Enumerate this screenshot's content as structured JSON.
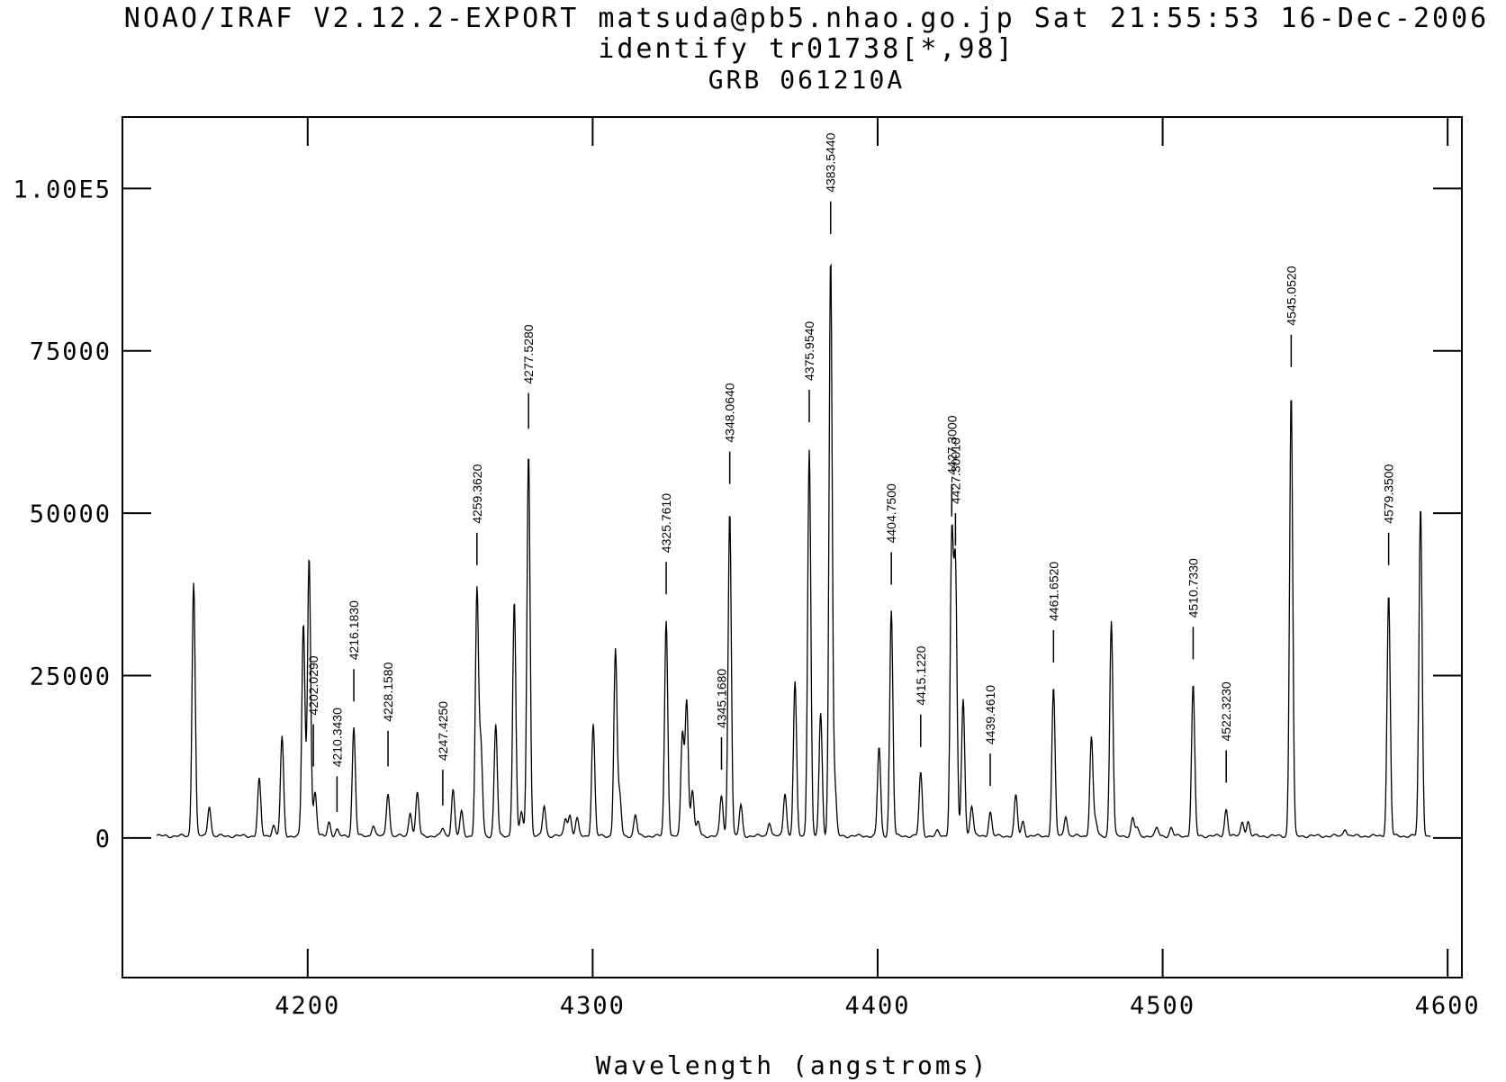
{
  "header": {
    "system_line": "NOAO/IRAF V2.12.2-EXPORT matsuda@pb5.nhao.go.jp Sat 21:55:53 16-Dec-2006",
    "command_line": "identify tr01738[*,98]",
    "object_line": "GRB 061210A"
  },
  "chart_data": {
    "type": "line",
    "title": "GRB 061210A",
    "xlabel": "Wavelength (angstroms)",
    "ylabel": "",
    "xlim": [
      4135,
      4605
    ],
    "ylim": [
      -21500,
      111000
    ],
    "grid": false,
    "x_ticks": [
      {
        "value": 4200,
        "label": "4200"
      },
      {
        "value": 4300,
        "label": "4300"
      },
      {
        "value": 4400,
        "label": "4400"
      },
      {
        "value": 4500,
        "label": "4500"
      },
      {
        "value": 4600,
        "label": "4600"
      }
    ],
    "y_ticks": [
      {
        "value": 0,
        "label": "0"
      },
      {
        "value": 25000,
        "label": "25000"
      },
      {
        "value": 50000,
        "label": "50000"
      },
      {
        "value": 75000,
        "label": "75000"
      },
      {
        "value": 100000,
        "label": "1.00E5"
      }
    ],
    "baseline": 300,
    "lines": [
      {
        "x": 4160.0,
        "y": 39500
      },
      {
        "x": 4165.5,
        "y": 5000
      },
      {
        "x": 4183.0,
        "y": 9000
      },
      {
        "x": 4188.0,
        "y": 2000
      },
      {
        "x": 4191.0,
        "y": 15500
      },
      {
        "x": 4198.5,
        "y": 33000
      },
      {
        "x": 4200.5,
        "y": 43500
      },
      {
        "x": 4202.6,
        "y": 7000
      },
      {
        "x": 4207.5,
        "y": 2500
      },
      {
        "x": 4210.3,
        "y": 1200
      },
      {
        "x": 4216.2,
        "y": 17000
      },
      {
        "x": 4223.0,
        "y": 2000
      },
      {
        "x": 4228.2,
        "y": 7000
      },
      {
        "x": 4236.0,
        "y": 4000
      },
      {
        "x": 4238.5,
        "y": 7000
      },
      {
        "x": 4247.4,
        "y": 1500
      },
      {
        "x": 4251.0,
        "y": 7500
      },
      {
        "x": 4254.0,
        "y": 4000
      },
      {
        "x": 4259.4,
        "y": 38000
      },
      {
        "x": 4260.8,
        "y": 14000
      },
      {
        "x": 4266.0,
        "y": 17500
      },
      {
        "x": 4272.5,
        "y": 36500
      },
      {
        "x": 4275.0,
        "y": 4000
      },
      {
        "x": 4277.5,
        "y": 59500
      },
      {
        "x": 4283.0,
        "y": 5000
      },
      {
        "x": 4290.5,
        "y": 3000
      },
      {
        "x": 4292.0,
        "y": 3500
      },
      {
        "x": 4294.5,
        "y": 3000
      },
      {
        "x": 4300.2,
        "y": 17500
      },
      {
        "x": 4308.0,
        "y": 29000
      },
      {
        "x": 4309.5,
        "y": 6500
      },
      {
        "x": 4315.0,
        "y": 3500
      },
      {
        "x": 4325.8,
        "y": 33500
      },
      {
        "x": 4331.5,
        "y": 16000
      },
      {
        "x": 4333.0,
        "y": 21000
      },
      {
        "x": 4335.0,
        "y": 7500
      },
      {
        "x": 4337.0,
        "y": 2500
      },
      {
        "x": 4345.2,
        "y": 6500
      },
      {
        "x": 4348.1,
        "y": 50500
      },
      {
        "x": 4352.0,
        "y": 5000
      },
      {
        "x": 4362.0,
        "y": 2500
      },
      {
        "x": 4367.5,
        "y": 7000
      },
      {
        "x": 4371.0,
        "y": 24000
      },
      {
        "x": 4376.0,
        "y": 60000
      },
      {
        "x": 4380.0,
        "y": 19000
      },
      {
        "x": 4383.5,
        "y": 89500
      },
      {
        "x": 4385.0,
        "y": 7500
      },
      {
        "x": 4400.5,
        "y": 14000
      },
      {
        "x": 4404.8,
        "y": 35000
      },
      {
        "x": 4415.1,
        "y": 10000
      },
      {
        "x": 4421.0,
        "y": 1000
      },
      {
        "x": 4426.0,
        "y": 45500
      },
      {
        "x": 4427.3,
        "y": 41000
      },
      {
        "x": 4430.0,
        "y": 21500
      },
      {
        "x": 4433.0,
        "y": 5000
      },
      {
        "x": 4439.5,
        "y": 4000
      },
      {
        "x": 4448.5,
        "y": 6500
      },
      {
        "x": 4451.0,
        "y": 2500
      },
      {
        "x": 4461.7,
        "y": 23000
      },
      {
        "x": 4466.0,
        "y": 3500
      },
      {
        "x": 4475.0,
        "y": 15500
      },
      {
        "x": 4476.5,
        "y": 2500
      },
      {
        "x": 4482.0,
        "y": 33500
      },
      {
        "x": 4489.5,
        "y": 3000
      },
      {
        "x": 4491.0,
        "y": 1500
      },
      {
        "x": 4498.0,
        "y": 1500
      },
      {
        "x": 4503.0,
        "y": 1500
      },
      {
        "x": 4510.7,
        "y": 23500
      },
      {
        "x": 4522.3,
        "y": 4500
      },
      {
        "x": 4528.0,
        "y": 2500
      },
      {
        "x": 4530.0,
        "y": 2500
      },
      {
        "x": 4545.1,
        "y": 68500
      },
      {
        "x": 4564.0,
        "y": 1500
      },
      {
        "x": 4579.3,
        "y": 37500
      },
      {
        "x": 4590.5,
        "y": 51000
      }
    ],
    "identified": [
      {
        "label": "4202.0290",
        "x": 4202.0,
        "y0": 17500,
        "y1": 11000
      },
      {
        "label": "4210.3430",
        "x": 4210.3,
        "y0": 9500,
        "y1": 4000
      },
      {
        "label": "4216.1830",
        "x": 4216.2,
        "y0": 26000,
        "y1": 21000
      },
      {
        "label": "4228.1580",
        "x": 4228.2,
        "y0": 16500,
        "y1": 11000
      },
      {
        "label": "4247.4250",
        "x": 4247.4,
        "y0": 10500,
        "y1": 5000
      },
      {
        "label": "4259.3620",
        "x": 4259.4,
        "y0": 47000,
        "y1": 42000
      },
      {
        "label": "4277.5280",
        "x": 4277.5,
        "y0": 68500,
        "y1": 63000
      },
      {
        "label": "4325.7610",
        "x": 4325.8,
        "y0": 42500,
        "y1": 37500
      },
      {
        "label": "4345.1680",
        "x": 4345.2,
        "y0": 15500,
        "y1": 10500
      },
      {
        "label": "4348.0640",
        "x": 4348.1,
        "y0": 59500,
        "y1": 54500
      },
      {
        "label": "4375.9540",
        "x": 4376.0,
        "y0": 69000,
        "y1": 64000
      },
      {
        "label": "4383.5440",
        "x": 4383.5,
        "y0": 98000,
        "y1": 93000
      },
      {
        "label": "4404.7500",
        "x": 4404.8,
        "y0": 44000,
        "y1": 39000
      },
      {
        "label": "4415.1220",
        "x": 4415.1,
        "y0": 19000,
        "y1": 14000
      },
      {
        "label": "4427.3000",
        "x": 4426.0,
        "y0": 54500,
        "y1": 49500
      },
      {
        "label": "4427.30010",
        "x": 4427.3,
        "y0": 50000,
        "y1": 45000
      },
      {
        "label": "4439.4610",
        "x": 4439.5,
        "y0": 13000,
        "y1": 8000
      },
      {
        "label": "4461.6520",
        "x": 4461.7,
        "y0": 32000,
        "y1": 27000
      },
      {
        "label": "4510.7330",
        "x": 4510.7,
        "y0": 32500,
        "y1": 27500
      },
      {
        "label": "4522.3230",
        "x": 4522.3,
        "y0": 13500,
        "y1": 8500
      },
      {
        "label": "4545.0520",
        "x": 4545.1,
        "y0": 77500,
        "y1": 72500
      },
      {
        "label": "4579.3500",
        "x": 4579.3,
        "y0": 47000,
        "y1": 42000
      }
    ]
  }
}
